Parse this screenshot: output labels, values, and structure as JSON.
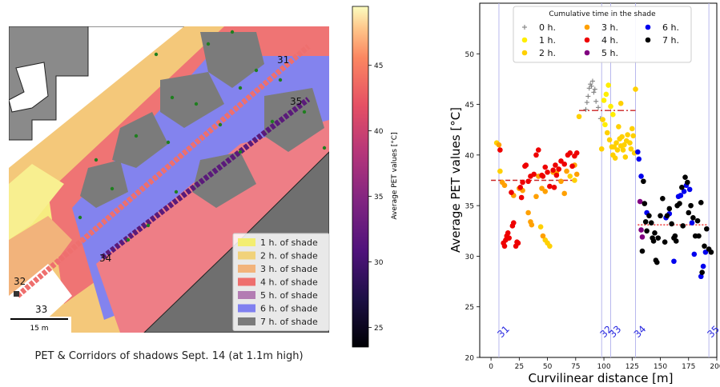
{
  "map_panel": {
    "caption": "PET & Corridors of shadows Sept. 14 (at 1.1m high)",
    "scalebar_label": "15 m",
    "corridor_labels": [
      "31",
      "32",
      "33",
      "34",
      "35"
    ],
    "legend_items": [
      {
        "label": "1 h. of shade",
        "color": "#f3ee71"
      },
      {
        "label": "2 h. of shade",
        "color": "#f1d27a"
      },
      {
        "label": "3 h. of shade",
        "color": "#f2b37b"
      },
      {
        "label": "4 h. of shade",
        "color": "#ee6f6e"
      },
      {
        "label": "5 h. of shade",
        "color": "#b37cb3"
      },
      {
        "label": "6 h. of shade",
        "color": "#8080f0"
      },
      {
        "label": "7 h. of shade",
        "color": "#7b7b7b"
      }
    ],
    "colorbar": {
      "label": "Average PET values [°C]",
      "ticks": [
        25,
        30,
        35,
        40,
        45
      ],
      "range": [
        23.5,
        49.5
      ],
      "colormap": "magma"
    }
  },
  "chart_data": {
    "type": "scatter",
    "xlabel": "Curvilinear distance [m]",
    "ylabel": "Average PET values [°C]",
    "xlim": [
      -10,
      200
    ],
    "ylim": [
      20,
      55
    ],
    "xticks": [
      0,
      25,
      50,
      75,
      100,
      125,
      150,
      175,
      200
    ],
    "yticks": [
      20,
      25,
      30,
      35,
      40,
      45,
      50
    ],
    "legend": {
      "title": "Cumulative time in the shade",
      "placement": "top-center",
      "entries": [
        {
          "label": "0 h.",
          "marker": "plus",
          "color": "#808080"
        },
        {
          "label": "1 h.",
          "marker": "dot",
          "color": "#ffee00"
        },
        {
          "label": "2 h.",
          "marker": "dot",
          "color": "#ffd000"
        },
        {
          "label": "3 h.",
          "marker": "dot",
          "color": "#ffa000"
        },
        {
          "label": "4 h.",
          "marker": "dot",
          "color": "#ee0000"
        },
        {
          "label": "5 h.",
          "marker": "dot",
          "color": "#800080"
        },
        {
          "label": "6 h.",
          "marker": "dot",
          "color": "#0000ee"
        },
        {
          "label": "7 h.",
          "marker": "dot",
          "color": "#000000"
        }
      ]
    },
    "corridor_markers": [
      {
        "label": "31",
        "x": 7
      },
      {
        "label": "32",
        "x": 98
      },
      {
        "label": "33",
        "x": 106
      },
      {
        "label": "34",
        "x": 128
      },
      {
        "label": "35",
        "x": 193
      }
    ],
    "mean_lines": [
      {
        "x": [
          0,
          75
        ],
        "y": 37.5,
        "style": "dashed",
        "color": "#cc2222"
      },
      {
        "x": [
          78,
          128
        ],
        "y": 44.4,
        "style": "dashdot",
        "color": "#cc2222"
      },
      {
        "x": [
          130,
          192
        ],
        "y": 33.1,
        "style": "dotted",
        "color": "#ee2222"
      }
    ],
    "series": [
      {
        "name": "0 h.",
        "marker": "plus",
        "color": "#808080",
        "points": [
          [
            84,
            44.5
          ],
          [
            86,
            45.8
          ],
          [
            87,
            46.6
          ],
          [
            88,
            47.0
          ],
          [
            89,
            46.8
          ],
          [
            90,
            47.3
          ],
          [
            91,
            46.2
          ],
          [
            93,
            45.3
          ],
          [
            95,
            44.7
          ],
          [
            97,
            43.6
          ],
          [
            85,
            45.2
          ],
          [
            92,
            46.5
          ]
        ]
      },
      {
        "name": "1 h.",
        "marker": "dot",
        "color": "#ffee00",
        "points": [
          [
            100,
            45.4
          ],
          [
            102,
            46.0
          ],
          [
            104,
            46.9
          ],
          [
            106,
            44.8
          ],
          [
            108,
            44.0
          ],
          [
            101,
            43.0
          ]
        ]
      },
      {
        "name": "2 h.",
        "marker": "dot",
        "color": "#ffd000",
        "points": [
          [
            78,
            43.8
          ],
          [
            98,
            40.6
          ],
          [
            99,
            43.5
          ],
          [
            103,
            42.2
          ],
          [
            105,
            41.5
          ],
          [
            107,
            40.8
          ],
          [
            108,
            40.0
          ],
          [
            109,
            40.8
          ],
          [
            110,
            39.7
          ],
          [
            111,
            41.2
          ],
          [
            112,
            40.5
          ],
          [
            113,
            42.8
          ],
          [
            114,
            41.6
          ],
          [
            115,
            40.9
          ],
          [
            116,
            41.8
          ],
          [
            117,
            40.5
          ],
          [
            118,
            41.0
          ],
          [
            119,
            39.8
          ],
          [
            120,
            41.4
          ],
          [
            121,
            42.0
          ],
          [
            123,
            41.2
          ],
          [
            124,
            40.6
          ],
          [
            125,
            42.6
          ],
          [
            126,
            41.9
          ],
          [
            127,
            40.2
          ],
          [
            115,
            45.1
          ],
          [
            128,
            46.5
          ],
          [
            5,
            41.2
          ],
          [
            8,
            38.4
          ],
          [
            44,
            32.9
          ],
          [
            48,
            31.6
          ],
          [
            50,
            31.3
          ],
          [
            52,
            31.0
          ],
          [
            70,
            37.9
          ],
          [
            74,
            37.5
          ]
        ]
      },
      {
        "name": "3 h.",
        "marker": "dot",
        "color": "#ffa000",
        "points": [
          [
            7,
            41.0
          ],
          [
            10,
            37.3
          ],
          [
            12,
            37.0
          ],
          [
            20,
            36.0
          ],
          [
            25,
            36.7
          ],
          [
            28,
            36.5
          ],
          [
            33,
            34.3
          ],
          [
            35,
            33.4
          ],
          [
            36,
            33.1
          ],
          [
            40,
            35.9
          ],
          [
            42,
            37.9
          ],
          [
            45,
            36.7
          ],
          [
            48,
            36.4
          ],
          [
            55,
            38.3
          ],
          [
            58,
            38.2
          ],
          [
            60,
            38.6
          ],
          [
            62,
            37.4
          ],
          [
            65,
            36.2
          ],
          [
            67,
            38.4
          ],
          [
            72,
            38.9
          ],
          [
            74,
            39.0
          ],
          [
            76,
            38.1
          ],
          [
            14,
            32.0
          ],
          [
            46,
            32.0
          ]
        ]
      },
      {
        "name": "4 h.",
        "marker": "dot",
        "color": "#ee0000",
        "points": [
          [
            8,
            40.5
          ],
          [
            11,
            31.3
          ],
          [
            12,
            31.0
          ],
          [
            13,
            31.6
          ],
          [
            14,
            32.0
          ],
          [
            15,
            32.3
          ],
          [
            18,
            36.3
          ],
          [
            19,
            33.0
          ],
          [
            20,
            33.3
          ],
          [
            22,
            31.0
          ],
          [
            23,
            31.4
          ],
          [
            24,
            31.3
          ],
          [
            26,
            36.8
          ],
          [
            28,
            37.3
          ],
          [
            30,
            38.9
          ],
          [
            31,
            39.0
          ],
          [
            33,
            37.4
          ],
          [
            35,
            37.9
          ],
          [
            38,
            38.1
          ],
          [
            40,
            40.0
          ],
          [
            42,
            40.5
          ],
          [
            45,
            38.0
          ],
          [
            48,
            38.8
          ],
          [
            50,
            38.3
          ],
          [
            52,
            36.9
          ],
          [
            55,
            38.5
          ],
          [
            56,
            36.8
          ],
          [
            58,
            38.0
          ],
          [
            60,
            38.6
          ],
          [
            62,
            39.4
          ],
          [
            65,
            39.1
          ],
          [
            68,
            40.0
          ],
          [
            70,
            40.2
          ],
          [
            72,
            38.9
          ],
          [
            74,
            39.9
          ],
          [
            76,
            40.2
          ],
          [
            27,
            35.8
          ],
          [
            16,
            31.8
          ],
          [
            46,
            37.9
          ],
          [
            57,
            39.0
          ]
        ]
      },
      {
        "name": "5 h.",
        "marker": "dot",
        "color": "#800080",
        "points": [
          [
            132,
            35.4
          ],
          [
            133,
            32.6
          ],
          [
            134,
            31.9
          ]
        ]
      },
      {
        "name": "6 h.",
        "marker": "dot",
        "color": "#0000ee",
        "points": [
          [
            130,
            40.3
          ],
          [
            131,
            39.6
          ],
          [
            133,
            37.9
          ],
          [
            138,
            34.3
          ],
          [
            155,
            33.8
          ],
          [
            158,
            34.2
          ],
          [
            162,
            29.5
          ],
          [
            166,
            35.9
          ],
          [
            168,
            36.0
          ],
          [
            171,
            36.4
          ],
          [
            173,
            37.0
          ],
          [
            176,
            36.6
          ],
          [
            178,
            33.3
          ],
          [
            180,
            30.2
          ],
          [
            186,
            28.0
          ],
          [
            188,
            29.0
          ],
          [
            190,
            30.4
          ]
        ]
      },
      {
        "name": "7 h.",
        "marker": "dot",
        "color": "#000000",
        "points": [
          [
            134,
            30.5
          ],
          [
            135,
            37.4
          ],
          [
            136,
            35.2
          ],
          [
            137,
            33.4
          ],
          [
            138,
            32.5
          ],
          [
            140,
            34.0
          ],
          [
            142,
            33.3
          ],
          [
            143,
            31.8
          ],
          [
            144,
            31.5
          ],
          [
            145,
            32.3
          ],
          [
            146,
            29.6
          ],
          [
            147,
            29.4
          ],
          [
            148,
            31.8
          ],
          [
            150,
            34.0
          ],
          [
            152,
            35.7
          ],
          [
            154,
            31.4
          ],
          [
            156,
            34.0
          ],
          [
            158,
            34.7
          ],
          [
            160,
            33.2
          ],
          [
            162,
            31.8
          ],
          [
            163,
            32.0
          ],
          [
            164,
            31.5
          ],
          [
            165,
            35.0
          ],
          [
            167,
            35.2
          ],
          [
            169,
            36.8
          ],
          [
            170,
            33.0
          ],
          [
            172,
            37.8
          ],
          [
            174,
            37.3
          ],
          [
            175,
            34.3
          ],
          [
            177,
            35.0
          ],
          [
            179,
            33.8
          ],
          [
            181,
            32.0
          ],
          [
            183,
            33.5
          ],
          [
            184,
            32.0
          ],
          [
            186,
            35.3
          ],
          [
            187,
            28.4
          ],
          [
            189,
            31.0
          ],
          [
            191,
            32.7
          ],
          [
            193,
            30.7
          ],
          [
            195,
            30.4
          ]
        ]
      }
    ]
  }
}
